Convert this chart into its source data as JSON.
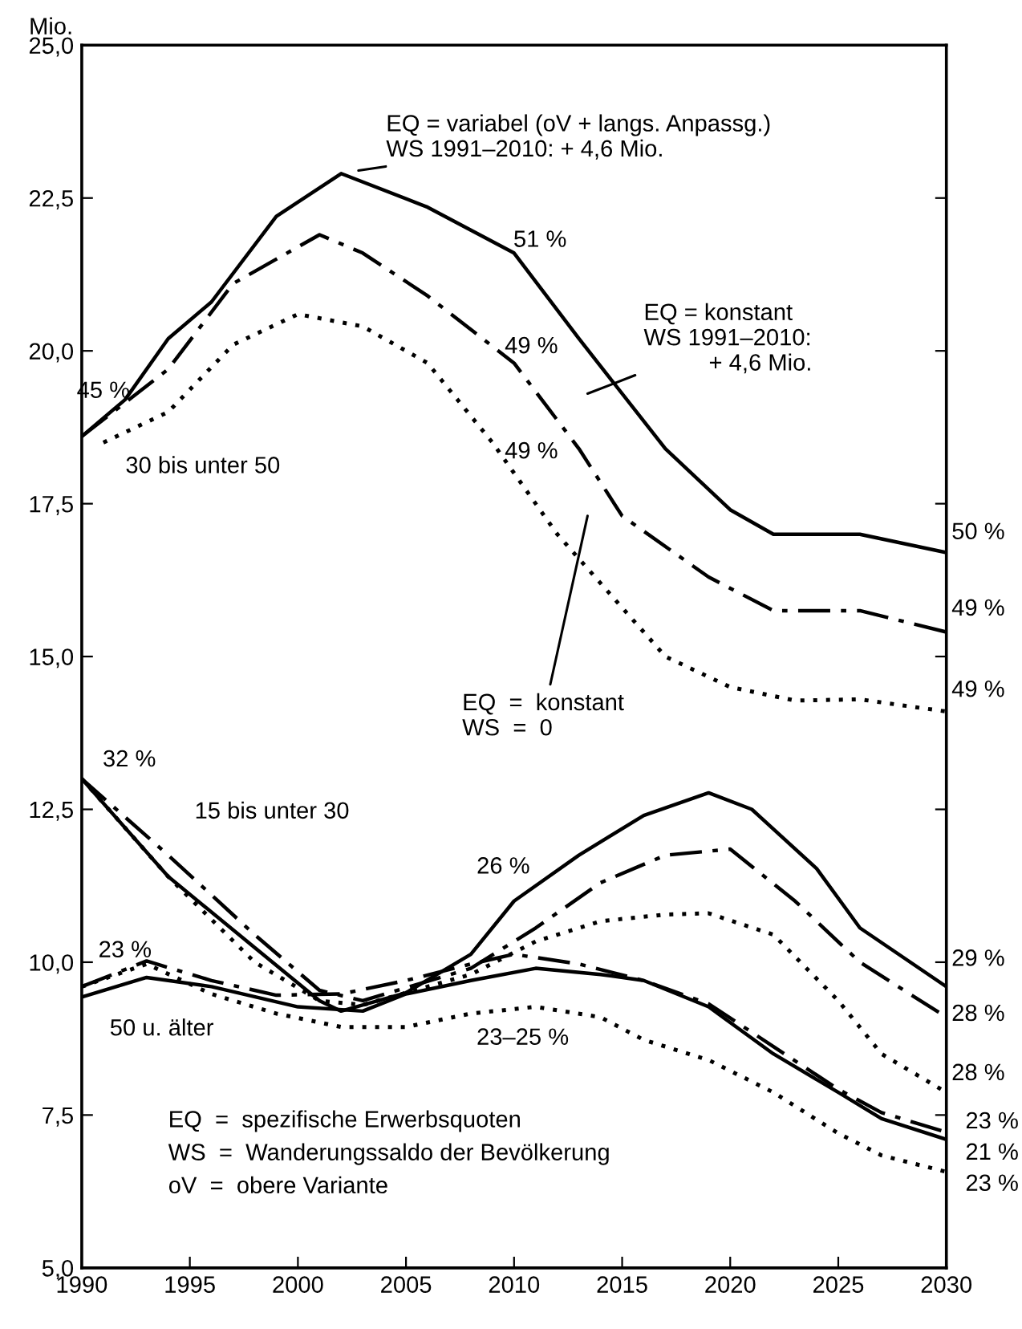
{
  "chart_data": {
    "type": "line",
    "ylabel": "Mio.",
    "xlim": [
      1990,
      2030
    ],
    "xticks": [
      1990,
      1995,
      2000,
      2005,
      2010,
      2015,
      2020,
      2025,
      2030
    ],
    "ylim": [
      5,
      25
    ],
    "yticks": [
      {
        "value": 5,
        "label": "5,0"
      },
      {
        "value": 7.5,
        "label": "7,5"
      },
      {
        "value": 10,
        "label": "10,0"
      },
      {
        "value": 12.5,
        "label": "12,5"
      },
      {
        "value": 15,
        "label": "15,0"
      },
      {
        "value": 17.5,
        "label": "17,5"
      },
      {
        "value": 20,
        "label": "20,0"
      },
      {
        "value": 22.5,
        "label": "22,5"
      },
      {
        "value": 25,
        "label": "25,0"
      }
    ],
    "grid": false,
    "series": [
      {
        "color": "#000000",
        "line_style": "solid",
        "x": [
          1990,
          1992,
          1994,
          1996,
          1999,
          2002,
          2006,
          2010,
          2013,
          2017,
          2020,
          2022,
          2026,
          2030
        ],
        "values": [
          18.6,
          19.2,
          20.2,
          20.8,
          22.2,
          22.9,
          22.35,
          21.6,
          20.2,
          18.4,
          17.4,
          17.0,
          17.0,
          16.7
        ]
      },
      {
        "color": "#000000",
        "line_style": "dashdot",
        "x": [
          1990,
          1994,
          1997,
          2001,
          2003,
          2006,
          2010,
          2013,
          2015,
          2019,
          2022,
          2026,
          2030
        ],
        "values": [
          18.6,
          19.7,
          21.1,
          21.9,
          21.6,
          20.9,
          19.8,
          18.4,
          17.3,
          16.3,
          15.75,
          15.75,
          15.4
        ]
      },
      {
        "color": "#000000",
        "line_style": "dotted",
        "x": [
          1991,
          1994,
          1997,
          2000,
          2003,
          2006,
          2009,
          2012,
          2015,
          2017,
          2020,
          2023,
          2026,
          2030
        ],
        "values": [
          18.5,
          19.0,
          20.1,
          20.6,
          20.4,
          19.8,
          18.5,
          17.0,
          15.8,
          15.0,
          14.5,
          14.28,
          14.3,
          14.1
        ]
      },
      {
        "color": "#000000",
        "line_style": "solid",
        "x": [
          1990,
          1994,
          1998,
          2001,
          2002,
          2005,
          2008,
          2010,
          2013,
          2016,
          2019,
          2021,
          2024,
          2026,
          2030
        ],
        "values": [
          13.0,
          11.4,
          10.24,
          9.37,
          9.2,
          9.5,
          10.13,
          11.0,
          11.75,
          12.4,
          12.77,
          12.5,
          11.53,
          10.56,
          9.6
        ]
      },
      {
        "color": "#000000",
        "line_style": "dashdot",
        "x": [
          1990,
          1994,
          1998,
          2001,
          2003,
          2008,
          2011,
          2014,
          2017,
          2020,
          2023,
          2026,
          2030
        ],
        "values": [
          13.0,
          11.75,
          10.45,
          9.54,
          9.37,
          9.9,
          10.56,
          11.3,
          11.75,
          11.85,
          11.0,
          10.0,
          9.1
        ]
      },
      {
        "color": "#000000",
        "line_style": "dotted",
        "x": [
          1990,
          1994,
          1998,
          2001,
          2003,
          2008,
          2011,
          2014,
          2017,
          2019,
          2022,
          2025,
          2027,
          2030
        ],
        "values": [
          13.0,
          11.4,
          10.0,
          9.37,
          9.3,
          9.8,
          10.34,
          10.67,
          10.78,
          10.8,
          10.45,
          9.37,
          8.5,
          7.87
        ]
      },
      {
        "color": "#000000",
        "line_style": "solid",
        "x": [
          1990,
          1993,
          1996,
          2000,
          2003,
          2005,
          2008,
          2011,
          2014,
          2016,
          2019,
          2022,
          2025,
          2027,
          2030
        ],
        "values": [
          9.43,
          9.75,
          9.6,
          9.27,
          9.2,
          9.48,
          9.7,
          9.9,
          9.8,
          9.7,
          9.27,
          8.5,
          7.87,
          7.44,
          7.1
        ]
      },
      {
        "color": "#000000",
        "line_style": "dashdot",
        "x": [
          1990,
          1993,
          1996,
          1999,
          2002,
          2005,
          2008,
          2010,
          2013,
          2016,
          2019,
          2022,
          2025,
          2027,
          2030
        ],
        "values": [
          9.6,
          10.02,
          9.7,
          9.46,
          9.48,
          9.7,
          9.97,
          10.13,
          9.97,
          9.7,
          9.32,
          8.62,
          7.92,
          7.54,
          7.22
        ]
      },
      {
        "color": "#000000",
        "line_style": "dotted",
        "x": [
          1990,
          1993,
          1996,
          1999,
          2002,
          2005,
          2008,
          2011,
          2014,
          2016,
          2019,
          2022,
          2025,
          2027,
          2030
        ],
        "values": [
          9.6,
          9.97,
          9.48,
          9.16,
          8.94,
          8.94,
          9.16,
          9.27,
          9.1,
          8.73,
          8.4,
          7.87,
          7.2,
          6.84,
          6.57
        ]
      }
    ],
    "annotations": [
      "EQ = variabel (oV + langs. Anpassg.)\nWS 1991–2010: + 4,6 Mio.",
      "EQ = konstant\nWS 1991–2010:\n          + 4,6 Mio.",
      "EQ  =  konstant\nWS  =  0",
      "45 %",
      "30 bis unter 50",
      "51 %",
      "49 %",
      "49 %",
      "50 %",
      "49 %",
      "49 %",
      "32 %",
      "15 bis unter 30",
      "26 %",
      "23 %",
      "50 u. älter",
      "23–25 %",
      "29 %",
      "28 %",
      "28 %",
      "23 %",
      "21 %",
      "23 %",
      "EQ  =  spezifische Erwerbsquoten",
      "WS  =  Wanderungssaldo der Bevölkerung",
      "oV  =  obere Variante"
    ]
  }
}
